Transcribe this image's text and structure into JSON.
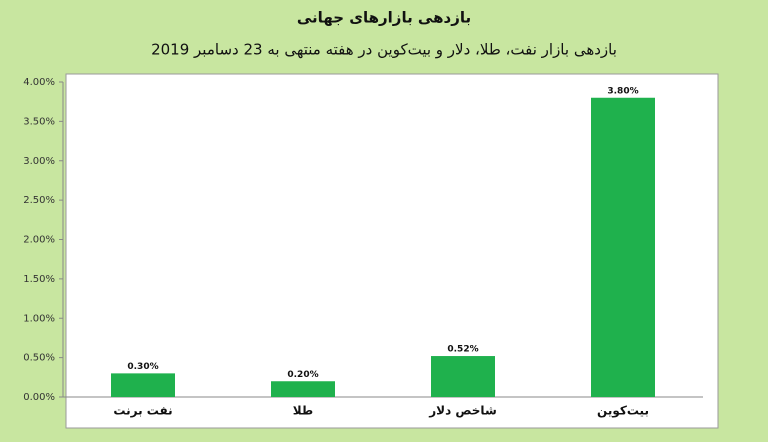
{
  "chart_data": {
    "type": "bar",
    "title": "بازدهی بازارهای جهانی",
    "subtitle": "بازدهی بازار نفت، طلا، دلار و بیت‌کوین در هفته منتهی به 23 دسامبر 2019",
    "categories": [
      "نفت برنت",
      "طلا",
      "شاخص دلار",
      "بیت‌کوین"
    ],
    "values": [
      0.3,
      0.2,
      0.52,
      3.8
    ],
    "value_labels": [
      "0.30%",
      "0.20%",
      "0.52%",
      "3.80%"
    ],
    "color": "#1fb14d",
    "ylim": [
      0,
      4
    ],
    "yticks": [
      {
        "value": 0,
        "label": "0.00%"
      },
      {
        "value": 0.5,
        "label": "0.50%"
      },
      {
        "value": 1,
        "label": "1.00%"
      },
      {
        "value": 1.5,
        "label": "1.50%"
      },
      {
        "value": 2,
        "label": "2.00%"
      },
      {
        "value": 2.5,
        "label": "2.50%"
      },
      {
        "value": 3,
        "label": "3.00%"
      },
      {
        "value": 3.5,
        "label": "3.50%"
      },
      {
        "value": 4,
        "label": "4.00%"
      }
    ],
    "grid": false
  }
}
